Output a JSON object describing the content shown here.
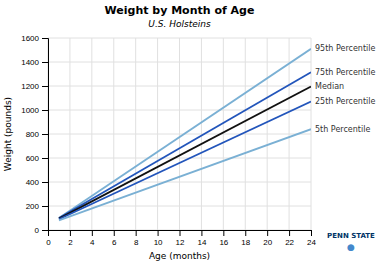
{
  "chart_data": {
    "type": "line",
    "title": "Weight by Month of Age",
    "subtitle": "U.S. Holsteins",
    "x_label": "Age (months)",
    "y_label": "Weight (pounds)",
    "x": [
      1,
      24
    ],
    "series": [
      {
        "name": "95th Percentile",
        "color": "#7AB0D4",
        "values": [
          100,
          1510
        ]
      },
      {
        "name": "75th Percentile",
        "color": "#2255BB",
        "values": [
          100,
          1315
        ]
      },
      {
        "name": "Median",
        "color": "#111111",
        "values": [
          95,
          1195
        ]
      },
      {
        "name": "25th Percentile",
        "color": "#2255BB",
        "values": [
          90,
          1070
        ]
      },
      {
        "name": "5th Percentile",
        "color": "#7AB0D4",
        "values": [
          80,
          840
        ]
      }
    ],
    "xlim": [
      0,
      24
    ],
    "ylim": [
      0,
      1600
    ],
    "xticks": [
      0,
      2,
      4,
      6,
      8,
      10,
      12,
      14,
      16,
      18,
      20,
      22,
      24
    ],
    "yticks": [
      0,
      200,
      400,
      600,
      800,
      1000,
      1200,
      1400,
      1600
    ],
    "grid": true,
    "annotations": [
      {
        "text": "PENN STATE",
        "color": "#003366"
      },
      {
        "text": "●",
        "color": "#4488CC"
      }
    ]
  }
}
